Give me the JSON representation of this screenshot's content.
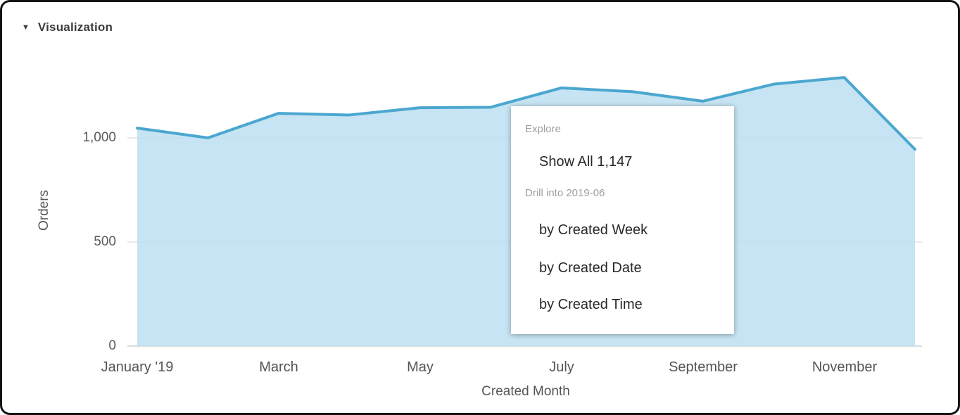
{
  "panel": {
    "title": "Visualization",
    "collapse_icon": "▼"
  },
  "chart_data": {
    "type": "area",
    "title": "",
    "xlabel": "Created Month",
    "ylabel": "Orders",
    "categories": [
      "2019-01",
      "2019-02",
      "2019-03",
      "2019-04",
      "2019-05",
      "2019-06",
      "2019-07",
      "2019-08",
      "2019-09",
      "2019-10",
      "2019-11",
      "2019-12"
    ],
    "values": [
      1047,
      1000,
      1118,
      1110,
      1145,
      1147,
      1240,
      1222,
      1176,
      1258,
      1290,
      945
    ],
    "ylim": [
      0,
      1350
    ],
    "yticks": [
      0,
      500,
      1000
    ],
    "ytick_labels": [
      "0",
      "500",
      "1,000"
    ],
    "xtick_labels": [
      "January '19",
      "March",
      "May",
      "July",
      "September",
      "November"
    ],
    "grid": true,
    "legend": "none",
    "line_color": "#4BA7CF",
    "fill_color": "#BCDFF1",
    "gridline_color": "#e2e2e2",
    "baseline_color": "#cfcfcf"
  },
  "menu": {
    "sections": [
      {
        "header": "Explore",
        "items": [
          "Show All 1,147"
        ]
      },
      {
        "header": "Drill into 2019-06",
        "items": [
          "by Created Week",
          "by Created Date",
          "by Created Time"
        ]
      }
    ]
  }
}
